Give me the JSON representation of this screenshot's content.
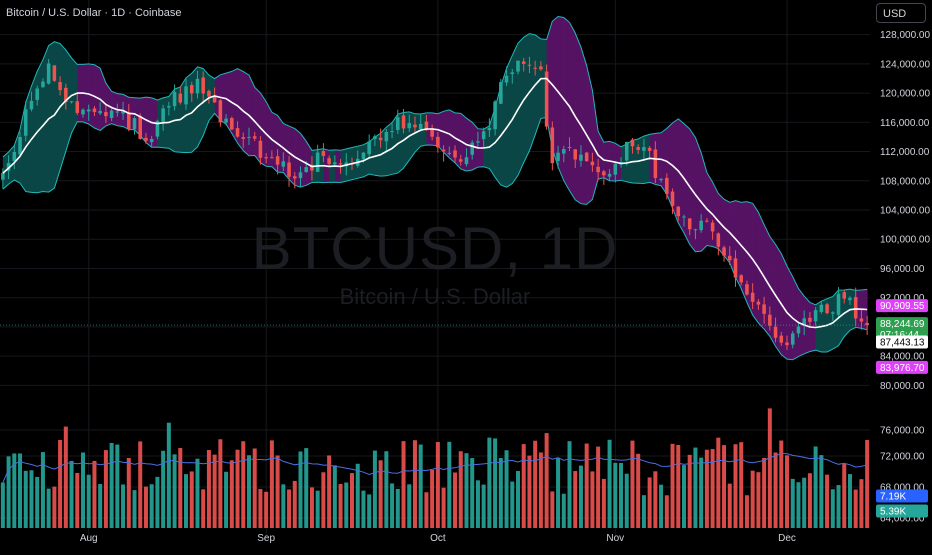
{
  "header": {
    "symbol_title": "Bitcoin / U.S. Dollar · 1D · Coinbase",
    "currency_button": "USD"
  },
  "watermark": {
    "ticker": "BTCUSD, 1D",
    "name": "Bitcoin / U.S. Dollar"
  },
  "colors": {
    "background": "#000000",
    "grid": "#16181d",
    "text": "#d1d4dc",
    "up": "#26a69a",
    "down": "#ef5350",
    "band_fill_up": "#0b4a49",
    "band_fill_down": "#5a1368",
    "band_line": "#1fb8b8",
    "band_line_down": "#b73fbf",
    "ma_line": "#ffffff",
    "vol_ma": "#4a6fe3",
    "tag_magenta": "#e040fb",
    "tag_green": "#2e9e4f",
    "tag_blue": "#2962ff",
    "tag_teal": "#26a69a"
  },
  "chart_data": {
    "type": "candlestick",
    "price_axis": {
      "ylim": [
        78000,
        130000
      ],
      "ticks": [
        "80,000.00",
        "84,000.00",
        "88,000.00",
        "92,000.00",
        "96,000.00",
        "100,000.00",
        "104,000.00",
        "108,000.00",
        "112,000.00",
        "116,000.00",
        "120,000.00",
        "124,000.00",
        "128,000.00"
      ],
      "tick_values": [
        80000,
        84000,
        88000,
        92000,
        96000,
        100000,
        104000,
        108000,
        112000,
        116000,
        120000,
        124000,
        128000
      ]
    },
    "volume_axis": {
      "ticks": [
        "64,000.00",
        "68,000.00",
        "72,000.00",
        "76,000.00"
      ],
      "tick_values": [
        64000,
        68000,
        72000,
        76000
      ]
    },
    "x_axis": {
      "labels": [
        "Aug",
        "Sep",
        "Oct",
        "Nov",
        "Dec"
      ],
      "label_index": [
        15,
        46,
        76,
        107,
        137
      ]
    },
    "num_bars": 152,
    "ohlc_keypoints": [
      [
        0,
        109000
      ],
      [
        5,
        118500
      ],
      [
        8,
        123000
      ],
      [
        12,
        118000
      ],
      [
        16,
        118500
      ],
      [
        20,
        117000
      ],
      [
        26,
        114000
      ],
      [
        30,
        119500
      ],
      [
        34,
        121000
      ],
      [
        38,
        117000
      ],
      [
        42,
        114500
      ],
      [
        48,
        110000
      ],
      [
        52,
        109000
      ],
      [
        56,
        111500
      ],
      [
        60,
        111000
      ],
      [
        64,
        113000
      ],
      [
        70,
        116000
      ],
      [
        76,
        113500
      ],
      [
        80,
        111000
      ],
      [
        84,
        113500
      ],
      [
        87,
        121000
      ],
      [
        90,
        123500
      ],
      [
        94,
        122000
      ],
      [
        96,
        111000
      ],
      [
        99,
        113000
      ],
      [
        102,
        110500
      ],
      [
        104,
        108500
      ],
      [
        107,
        110500
      ],
      [
        110,
        114000
      ],
      [
        113,
        111000
      ],
      [
        116,
        106000
      ],
      [
        120,
        102500
      ],
      [
        124,
        101000
      ],
      [
        128,
        96000
      ],
      [
        131,
        91000
      ],
      [
        134,
        88000
      ],
      [
        137,
        86500
      ],
      [
        140,
        88500
      ],
      [
        144,
        90500
      ],
      [
        147,
        91800
      ],
      [
        150,
        88500
      ],
      [
        152,
        87800
      ]
    ],
    "current_values": {
      "band_upper": "90,909.55",
      "last_price": "88,244.69",
      "countdown": "07:16:44",
      "ma_value": "87,443.13",
      "band_lower": "83,976.70",
      "volume_ma": "7.19K",
      "volume": "5.39K"
    },
    "current_values_numeric": {
      "band_upper": 90909.55,
      "last_price": 88244.69,
      "ma_value": 87443.13,
      "band_lower": 83976.7
    }
  }
}
